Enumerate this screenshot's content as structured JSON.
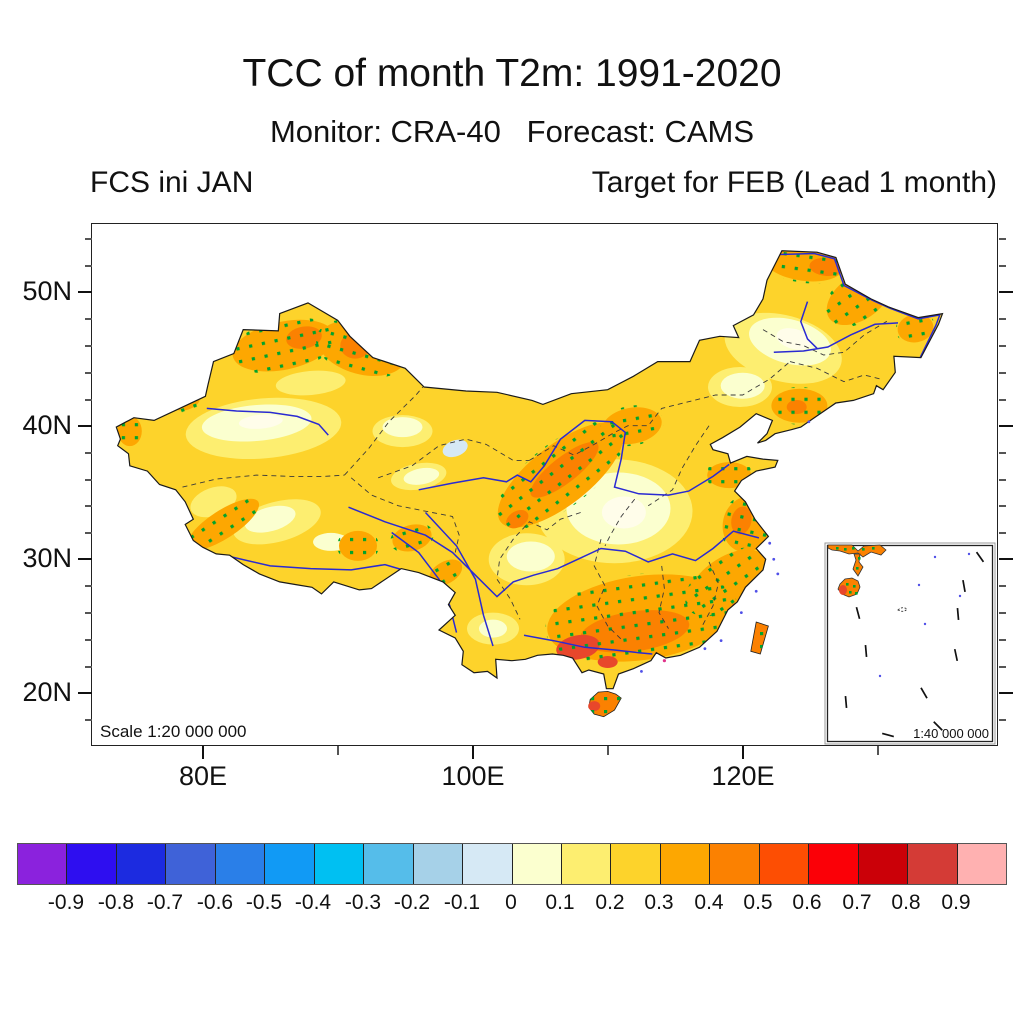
{
  "titles": {
    "main": "TCC of month T2m: 1991-2020",
    "sub": "Monitor: CRA-40   Forecast: CAMS",
    "left": "FCS ini JAN",
    "right": "Target for FEB (Lead 1 month)"
  },
  "map": {
    "scale_label": "Scale 1:20 000 000",
    "inset_scale_label": "1:40 000 000",
    "stipple_color": "#00a32b",
    "river_color": "#2a2ad2",
    "x_axis": {
      "tick_labels": [
        {
          "label": "80E",
          "lon": 80
        },
        {
          "label": "100E",
          "lon": 100
        },
        {
          "label": "120E",
          "lon": 120
        }
      ],
      "minor_lons": [
        90,
        110,
        130
      ]
    },
    "y_axis": {
      "tick_labels": [
        {
          "label": "50N",
          "lat": 50
        },
        {
          "label": "40N",
          "lat": 40
        },
        {
          "label": "30N",
          "lat": 30
        },
        {
          "label": "20N",
          "lat": 20
        }
      ],
      "minor_lats": [
        18,
        22,
        24,
        26,
        28,
        32,
        34,
        36,
        38,
        42,
        44,
        46,
        48,
        52,
        54
      ]
    }
  },
  "colorbar": {
    "colors": [
      "#8b22dd",
      "#2e0ef0",
      "#1c2be0",
      "#3f62d8",
      "#2a7fe8",
      "#119af5",
      "#00c0f2",
      "#55bdea",
      "#a6d1e8",
      "#d6e9f5",
      "#fbffcf",
      "#fdee70",
      "#fdd32b",
      "#fda701",
      "#fb8101",
      "#fd4e03",
      "#fb0007",
      "#cb0008",
      "#d43b36",
      "#ffb1b1"
    ],
    "tick_labels": [
      "-0.9",
      "-0.8",
      "-0.7",
      "-0.6",
      "-0.5",
      "-0.4",
      "-0.3",
      "-0.2",
      "-0.1",
      "0",
      "0.1",
      "0.2",
      "0.3",
      "0.4",
      "0.5",
      "0.6",
      "0.7",
      "0.8",
      "0.9"
    ]
  },
  "chart_data": {
    "type": "filled_contour_map",
    "variable": "TCC (temporal correlation coefficient) of monthly T2m",
    "period": "1991-2020",
    "monitor": "CRA-40",
    "forecast": "CAMS",
    "init_month": "JAN",
    "target_month": "FEB",
    "lead_months": 1,
    "region": "China",
    "lon_range_deg_e": [
      72,
      138
    ],
    "lat_range_deg_n": [
      16,
      55
    ],
    "contour_levels": [
      -0.9,
      -0.8,
      -0.7,
      -0.6,
      -0.5,
      -0.4,
      -0.3,
      -0.2,
      -0.1,
      0,
      0.1,
      0.2,
      0.3,
      0.4,
      0.5,
      0.6,
      0.7,
      0.8,
      0.9
    ],
    "stippling_meaning": "green dots over areas of higher/significant TCC",
    "regional_values_approx": [
      {
        "region": "Northern Xinjiang",
        "tcc": "0.3 to 0.5",
        "stippled": true
      },
      {
        "region": "Tarim Basin (southern Xinjiang)",
        "tcc": "0.0 to 0.2",
        "stippled": false
      },
      {
        "region": "Southwest Tibetan Plateau rim",
        "tcc": "0.3 to 0.4",
        "stippled": true
      },
      {
        "region": "Central belt Gansu-Shaanxi-Inner Mongolia",
        "tcc": "0.3 to 0.5",
        "stippled": true
      },
      {
        "region": "Sichuan Basin and central Henan",
        "tcc": "0.0 to 0.2",
        "stippled": false
      },
      {
        "region": "Southeast China coast (Guangxi-Guangdong-Fujian)",
        "tcc": "0.4 to 0.7",
        "stippled": true
      },
      {
        "region": "Northern Heilongjiang (Northeast tip)",
        "tcc": "0.3 to 0.5",
        "stippled": true
      },
      {
        "region": "Central Northeast plain",
        "tcc": "0.1 to 0.3",
        "stippled": false
      },
      {
        "region": "Small patch near 99E 38N",
        "tcc": "-0.1 to 0",
        "stippled": false
      },
      {
        "region": "Taiwan and Hainan",
        "tcc": "0.4 to 0.6",
        "stippled": true
      }
    ]
  }
}
